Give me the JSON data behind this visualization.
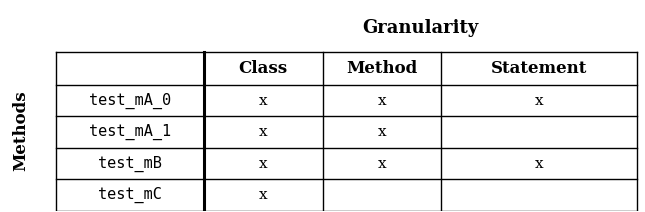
{
  "title": "Granularity",
  "col_headers": [
    "Class",
    "Method",
    "Statement"
  ],
  "row_header_label": "Methods",
  "rows": [
    {
      "label": "test_mA_0",
      "class": "x",
      "method": "x",
      "statement": "x"
    },
    {
      "label": "test_mA_1",
      "class": "x",
      "method": "x",
      "statement": ""
    },
    {
      "label": "test_mB",
      "class": "x",
      "method": "x",
      "statement": "x"
    },
    {
      "label": "test_mC",
      "class": "x",
      "method": "",
      "statement": ""
    }
  ],
  "bg_color": "#ffffff",
  "text_color": "#000000",
  "title_fontsize": 13,
  "header_fontsize": 12,
  "cell_fontsize": 11,
  "row_label_fontsize": 11,
  "ylabel_fontsize": 12
}
